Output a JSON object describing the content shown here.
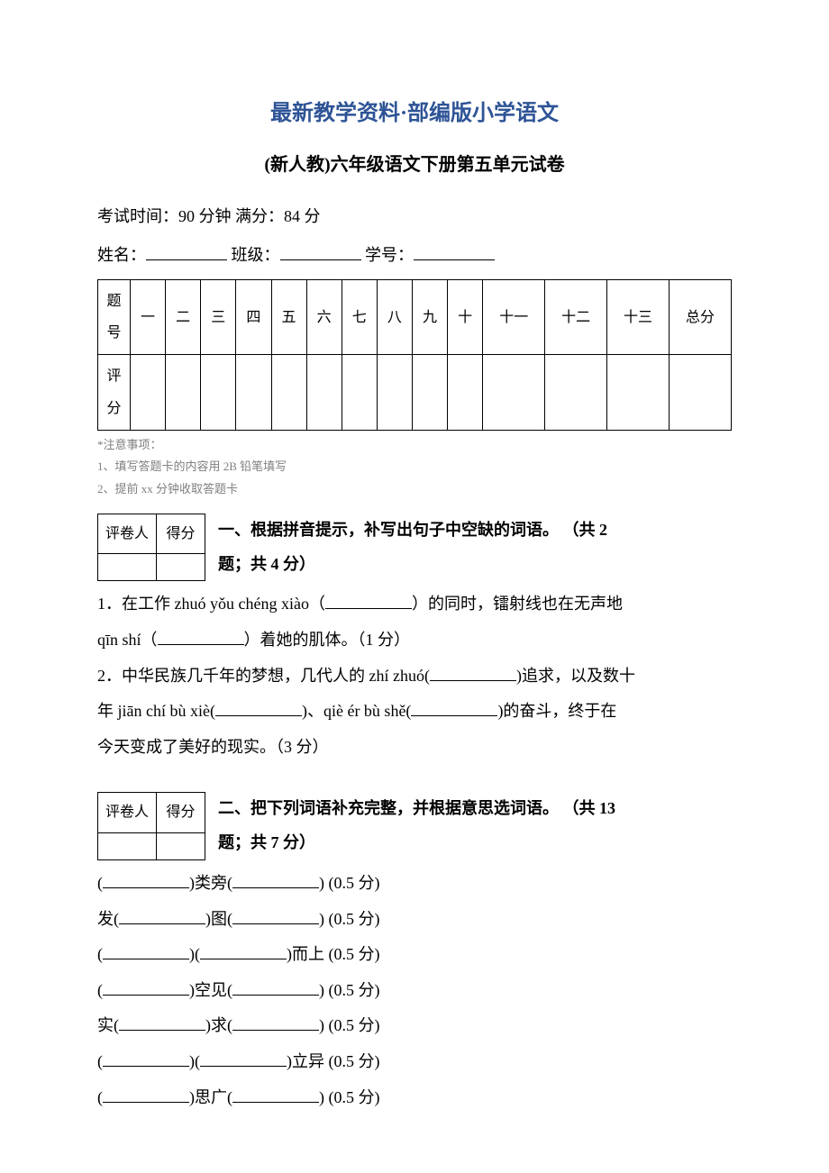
{
  "header": {
    "main_title": "最新教学资料·部编版小学语文",
    "sub_title": "(新人教)六年级语文下册第五单元试卷",
    "exam_info": "考试时间：90 分钟   满分：84 分",
    "name_label": "姓名：",
    "class_label": " 班级：",
    "id_label": " 学号："
  },
  "score_table": {
    "row1_head": "题号",
    "row2_head": "评分",
    "cols": [
      "一",
      "二",
      "三",
      "四",
      "五",
      "六",
      "七",
      "八",
      "九",
      "十",
      "十一",
      "十二",
      "十三",
      "总分"
    ]
  },
  "notes": {
    "n0": "*注意事项：",
    "n1": "1、填写答题卡的内容用 2B 铅笔填写",
    "n2": "2、提前 xx 分钟收取答题卡"
  },
  "grader": {
    "col1": "评卷人",
    "col2": "得分"
  },
  "section1": {
    "title_a": "一、根据拼音提示，补写出句子中空缺的词语。  （共 2",
    "title_b": "题；共 4 分）",
    "q1_a": "1．在工作 zhuó yǒu chéng xiào（",
    "q1_b": "）的同时，镭射线也在无声地",
    "q1_c": "qīn shí（",
    "q1_d": "）着她的肌体。（1 分）",
    "q2_a": "2．中华民族几千年的梦想，几代人的 zhí zhuó(",
    "q2_b": ")追求，以及数十",
    "q2_c": "年 jiān chí bù xiè(",
    "q2_d": ")、qiè ér bù shě(",
    "q2_e": ")的奋斗，终于在",
    "q2_f": "今天变成了美好的现实。（3 分）"
  },
  "section2": {
    "title_a": "二、把下列词语补充完整，并根据意思选词语。  （共 13",
    "title_b": "题；共 7 分）",
    "items": [
      {
        "a": "(",
        "b": ")类旁(",
        "c": ")  (0.5 分)"
      },
      {
        "a": "发(",
        "b": ")图(",
        "c": ")  (0.5 分)"
      },
      {
        "a": "(",
        "b": ")(",
        "c": ")而上  (0.5 分)"
      },
      {
        "a": "(",
        "b": ")空见(",
        "c": ")  (0.5 分)"
      },
      {
        "a": "实(",
        "b": ")求(",
        "c": ")  (0.5 分)"
      },
      {
        "a": "(",
        "b": ")(",
        "c": ")立异  (0.5 分)"
      },
      {
        "a": "(",
        "b": ")思广(",
        "c": ")  (0.5 分)"
      }
    ]
  },
  "style": {
    "title_color": "#2e5496",
    "notes_color": "#7f7f7f",
    "body_fontsize": 18
  }
}
